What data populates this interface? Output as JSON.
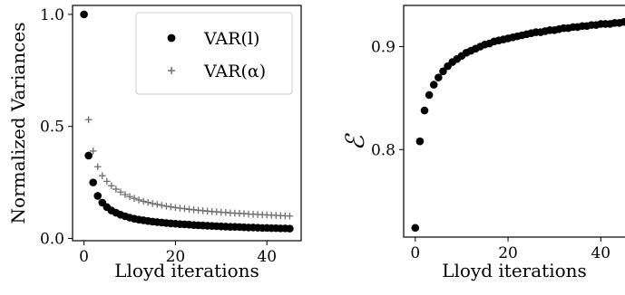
{
  "chart_data": [
    {
      "type": "scatter",
      "xlabel": "Lloyd iterations",
      "ylabel": "Normalized Variances",
      "xlim": [
        -2.5,
        47.5
      ],
      "ylim": [
        -0.01,
        1.04
      ],
      "xticks": [
        0,
        20,
        40
      ],
      "yticks": [
        0.0,
        0.5,
        1.0
      ],
      "xtick_labels": [
        "0",
        "20",
        "40"
      ],
      "ytick_labels": [
        "0.0",
        "0.5",
        "1.0"
      ],
      "legend_position": "top-right",
      "x": [
        0,
        1,
        2,
        3,
        4,
        5,
        6,
        7,
        8,
        9,
        10,
        11,
        12,
        13,
        14,
        15,
        16,
        17,
        18,
        19,
        20,
        21,
        22,
        23,
        24,
        25,
        26,
        27,
        28,
        29,
        30,
        31,
        32,
        33,
        34,
        35,
        36,
        37,
        38,
        39,
        40,
        41,
        42,
        43,
        44,
        45
      ],
      "series": [
        {
          "name": "VAR(l)",
          "marker": "circle",
          "color": "#000000",
          "values": [
            1.0,
            0.37,
            0.25,
            0.19,
            0.16,
            0.14,
            0.125,
            0.115,
            0.106,
            0.099,
            0.093,
            0.088,
            0.084,
            0.081,
            0.078,
            0.075,
            0.073,
            0.071,
            0.069,
            0.067,
            0.066,
            0.064,
            0.063,
            0.062,
            0.06,
            0.059,
            0.058,
            0.057,
            0.056,
            0.055,
            0.054,
            0.053,
            0.052,
            0.052,
            0.051,
            0.05,
            0.049,
            0.049,
            0.048,
            0.047,
            0.047,
            0.046,
            0.046,
            0.045,
            0.045,
            0.044
          ]
        },
        {
          "name": "VAR(α)",
          "marker": "plus",
          "color": "#6e6e6e",
          "values": [
            1.0,
            0.53,
            0.39,
            0.32,
            0.28,
            0.255,
            0.235,
            0.22,
            0.207,
            0.196,
            0.187,
            0.179,
            0.172,
            0.166,
            0.161,
            0.156,
            0.152,
            0.148,
            0.144,
            0.141,
            0.138,
            0.135,
            0.133,
            0.13,
            0.128,
            0.126,
            0.124,
            0.122,
            0.12,
            0.119,
            0.117,
            0.116,
            0.114,
            0.113,
            0.112,
            0.111,
            0.109,
            0.108,
            0.107,
            0.106,
            0.105,
            0.104,
            0.103,
            0.102,
            0.101,
            0.1
          ]
        }
      ]
    },
    {
      "type": "scatter",
      "xlabel": "Lloyd iterations",
      "ylabel": "ℰ",
      "xlim": [
        -2.5,
        46
      ],
      "ylim": [
        0.715,
        0.94
      ],
      "xticks": [
        0,
        20,
        40
      ],
      "yticks": [
        0.8,
        0.9
      ],
      "xtick_labels": [
        "0",
        "20",
        "40"
      ],
      "ytick_labels": [
        "0.8",
        "0.9"
      ],
      "x": [
        0,
        1,
        2,
        3,
        4,
        5,
        6,
        7,
        8,
        9,
        10,
        11,
        12,
        13,
        14,
        15,
        16,
        17,
        18,
        19,
        20,
        21,
        22,
        23,
        24,
        25,
        26,
        27,
        28,
        29,
        30,
        31,
        32,
        33,
        34,
        35,
        36,
        37,
        38,
        39,
        40,
        41,
        42,
        43,
        44,
        45
      ],
      "series": [
        {
          "marker": "circle",
          "color": "#000000",
          "values": [
            0.724,
            0.808,
            0.838,
            0.853,
            0.863,
            0.87,
            0.876,
            0.881,
            0.885,
            0.888,
            0.891,
            0.894,
            0.896,
            0.898,
            0.9,
            0.902,
            0.903,
            0.905,
            0.906,
            0.907,
            0.908,
            0.909,
            0.91,
            0.911,
            0.912,
            0.913,
            0.914,
            0.914,
            0.915,
            0.916,
            0.916,
            0.917,
            0.918,
            0.918,
            0.919,
            0.919,
            0.92,
            0.92,
            0.921,
            0.921,
            0.922,
            0.922,
            0.922,
            0.923,
            0.923,
            0.924
          ]
        }
      ]
    }
  ]
}
